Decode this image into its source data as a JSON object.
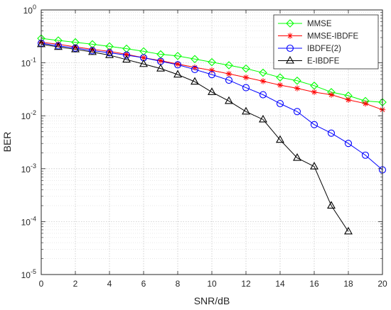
{
  "chart_data": {
    "type": "line",
    "xlabel": "SNR/dB",
    "ylabel": "BER",
    "xlim": [
      0,
      20
    ],
    "ylim": [
      1e-05,
      1
    ],
    "yscale": "log",
    "grid": true,
    "minor_grid": true,
    "legend_position": "top-right",
    "x_ticks": [
      0,
      2,
      4,
      6,
      8,
      10,
      12,
      14,
      16,
      18,
      20
    ],
    "y_ticks": [
      {
        "value": 1,
        "base": "10",
        "exp": "0"
      },
      {
        "value": 0.1,
        "base": "10",
        "exp": "-1"
      },
      {
        "value": 0.01,
        "base": "10",
        "exp": "-2"
      },
      {
        "value": 0.001,
        "base": "10",
        "exp": "-3"
      },
      {
        "value": 0.0001,
        "base": "10",
        "exp": "-4"
      },
      {
        "value": 1e-05,
        "base": "10",
        "exp": "-5"
      }
    ],
    "series": [
      {
        "name": "MMSE",
        "color": "#00ff00",
        "marker": "diamond",
        "x": [
          0,
          1,
          2,
          3,
          4,
          5,
          6,
          7,
          8,
          9,
          10,
          11,
          12,
          13,
          14,
          15,
          16,
          17,
          18,
          19,
          20
        ],
        "y": [
          0.29,
          0.265,
          0.245,
          0.225,
          0.205,
          0.185,
          0.165,
          0.145,
          0.135,
          0.118,
          0.103,
          0.09,
          0.078,
          0.065,
          0.053,
          0.046,
          0.037,
          0.028,
          0.024,
          0.019,
          0.018
        ]
      },
      {
        "name": "MMSE-IBDFE",
        "color": "#ff0000",
        "marker": "star",
        "x": [
          0,
          1,
          2,
          3,
          4,
          5,
          6,
          7,
          8,
          9,
          10,
          11,
          12,
          13,
          14,
          15,
          16,
          17,
          18,
          19,
          20
        ],
        "y": [
          0.245,
          0.225,
          0.2,
          0.18,
          0.165,
          0.145,
          0.125,
          0.11,
          0.095,
          0.082,
          0.072,
          0.062,
          0.053,
          0.045,
          0.038,
          0.033,
          0.028,
          0.025,
          0.02,
          0.017,
          0.013
        ]
      },
      {
        "name": "IBDFE(2)",
        "color": "#0000ff",
        "marker": "circle",
        "x": [
          0,
          1,
          2,
          3,
          4,
          5,
          6,
          7,
          8,
          9,
          10,
          11,
          12,
          13,
          14,
          15,
          16,
          17,
          18,
          19,
          20
        ],
        "y": [
          0.235,
          0.21,
          0.19,
          0.17,
          0.155,
          0.14,
          0.125,
          0.107,
          0.092,
          0.075,
          0.06,
          0.047,
          0.034,
          0.025,
          0.017,
          0.012,
          0.0068,
          0.0047,
          0.003,
          0.0018,
          0.00095
        ]
      },
      {
        "name": "E-IBDFE",
        "color": "#000000",
        "marker": "triangle",
        "x": [
          0,
          1,
          2,
          3,
          4,
          5,
          6,
          7,
          8,
          9,
          10,
          11,
          12,
          13,
          14,
          15,
          16,
          17,
          18
        ],
        "y": [
          0.225,
          0.2,
          0.18,
          0.16,
          0.14,
          0.115,
          0.095,
          0.078,
          0.06,
          0.044,
          0.028,
          0.019,
          0.012,
          0.0085,
          0.0035,
          0.0016,
          0.0011,
          0.0002,
          6.5e-05
        ]
      }
    ]
  }
}
